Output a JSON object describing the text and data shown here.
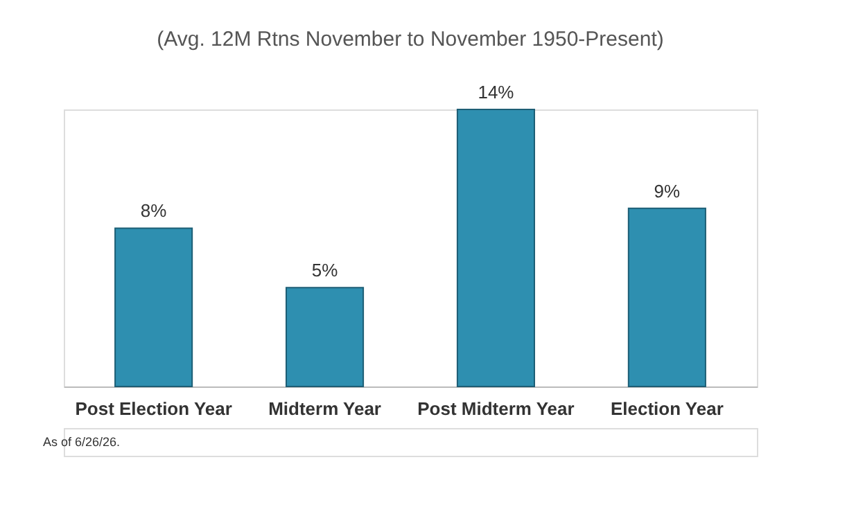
{
  "chart_data": {
    "type": "bar",
    "title": "(Avg. 12M Rtns November to November 1950-Present)",
    "categories": [
      "Post Election Year",
      "Midterm Year",
      "Post Midterm Year",
      "Election Year"
    ],
    "values": [
      8,
      5,
      14,
      9
    ],
    "value_labels": [
      "8%",
      "5%",
      "14%",
      "9%"
    ],
    "color": "#2e8fb0",
    "annotations": [
      "As of 6/26/26."
    ]
  }
}
